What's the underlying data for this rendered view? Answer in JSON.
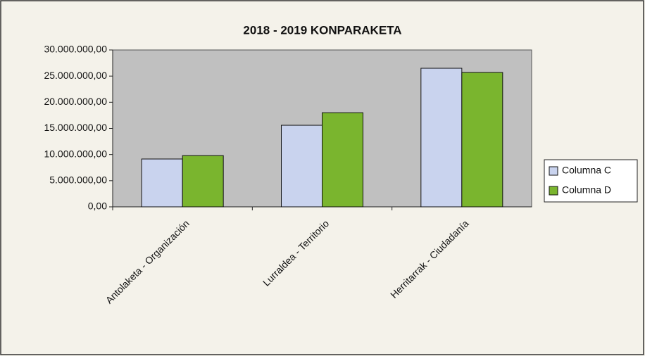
{
  "chart_data": {
    "type": "bar",
    "title": "2018 - 2019 KONPARAKETA",
    "categories": [
      "Antolaketa - Organización",
      "Lurraldea - Territorio",
      "Herritarrak - Ciudadanía"
    ],
    "series": [
      {
        "name": "Columna C",
        "color": "#c9d3ee",
        "values": [
          9150000,
          15600000,
          26500000
        ]
      },
      {
        "name": "Columna D",
        "color": "#7ab52e",
        "values": [
          9800000,
          18000000,
          25700000
        ]
      }
    ],
    "ylim": [
      0,
      30000000
    ],
    "yticks": [
      {
        "value": 0,
        "label": "0,00"
      },
      {
        "value": 5000000,
        "label": "5.000.000,00"
      },
      {
        "value": 10000000,
        "label": "10.000.000,00"
      },
      {
        "value": 15000000,
        "label": "15.000.000,00"
      },
      {
        "value": 20000000,
        "label": "20.000.000,00"
      },
      {
        "value": 25000000,
        "label": "25.000.000,00"
      },
      {
        "value": 30000000,
        "label": "30.000.000,00"
      }
    ],
    "legend": "right",
    "plot_background": "#c0c0c0"
  }
}
